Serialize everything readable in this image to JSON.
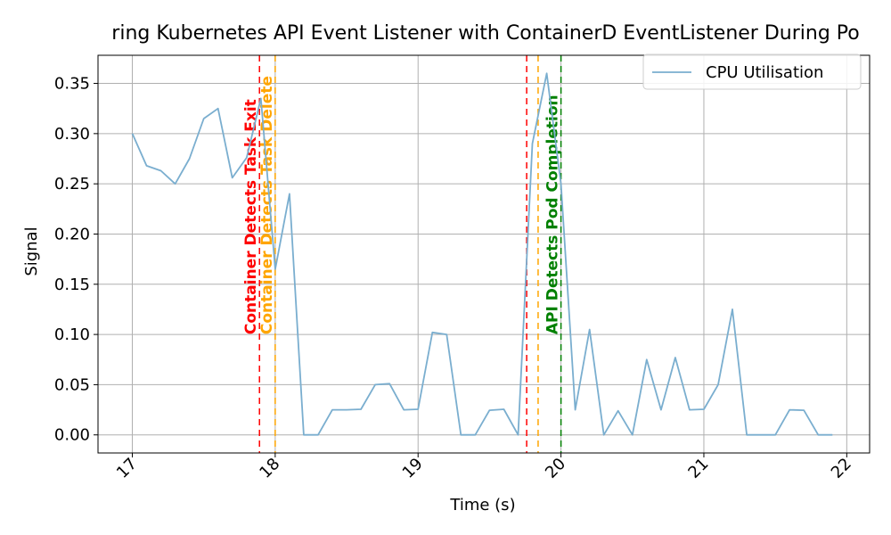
{
  "chart_data": {
    "type": "line",
    "title": "ring Kubernetes API Event Listener with ContainerD EventListener During Po",
    "xlabel": "Time (s)",
    "ylabel": "Signal",
    "xlim": [
      16.76,
      22.16
    ],
    "ylim": [
      -0.018,
      0.378
    ],
    "xticks": [
      17,
      18,
      19,
      20,
      21,
      22
    ],
    "xtick_labels": [
      "17",
      "18",
      "19",
      "20",
      "21",
      "22"
    ],
    "yticks": [
      0.0,
      0.05,
      0.1,
      0.15,
      0.2,
      0.25,
      0.3,
      0.35
    ],
    "ytick_labels": [
      "0.00",
      "0.05",
      "0.10",
      "0.15",
      "0.20",
      "0.25",
      "0.30",
      "0.35"
    ],
    "grid": true,
    "legend_position": "top-right",
    "series": [
      {
        "name": "CPU Utilisation",
        "color": "#7aaecf",
        "x": [
          17.0,
          17.1,
          17.2,
          17.3,
          17.4,
          17.5,
          17.6,
          17.7,
          17.8,
          17.9,
          18.0,
          18.1,
          18.2,
          18.3,
          18.4,
          18.5,
          18.6,
          18.7,
          18.8,
          18.9,
          19.0,
          19.1,
          19.2,
          19.3,
          19.4,
          19.5,
          19.6,
          19.7,
          19.8,
          19.9,
          20.0,
          20.1,
          20.2,
          20.3,
          20.4,
          20.5,
          20.6,
          20.7,
          20.8,
          20.9,
          21.0,
          21.1,
          21.2,
          21.3,
          21.4,
          21.5,
          21.6,
          21.7,
          21.8,
          21.9
        ],
        "y": [
          0.3,
          0.268,
          0.263,
          0.25,
          0.275,
          0.315,
          0.325,
          0.256,
          0.276,
          0.335,
          0.165,
          0.24,
          0.0,
          0.0,
          0.025,
          0.025,
          0.0255,
          0.05,
          0.051,
          0.025,
          0.0255,
          0.102,
          0.1,
          0.0,
          0.0,
          0.0245,
          0.0255,
          0.0,
          0.29,
          0.36,
          0.25,
          0.025,
          0.105,
          0.0,
          0.024,
          0.0,
          0.075,
          0.025,
          0.077,
          0.025,
          0.0255,
          0.05,
          0.125,
          0.0,
          0.0,
          0.0,
          0.025,
          0.0245,
          0.0,
          0.0
        ]
      }
    ],
    "vlines": [
      {
        "x": 17.89,
        "label": "Container Detects Task Exit",
        "color": "#ff0000"
      },
      {
        "x": 18.0,
        "label": "Container Detects Task Delete",
        "color": "#ffa500"
      },
      {
        "x": 19.76,
        "label": "",
        "color": "#ff0000"
      },
      {
        "x": 19.84,
        "label": "",
        "color": "#ffa500"
      },
      {
        "x": 20.0,
        "label": "API Detects Pod Completion",
        "color": "#008000"
      }
    ]
  }
}
